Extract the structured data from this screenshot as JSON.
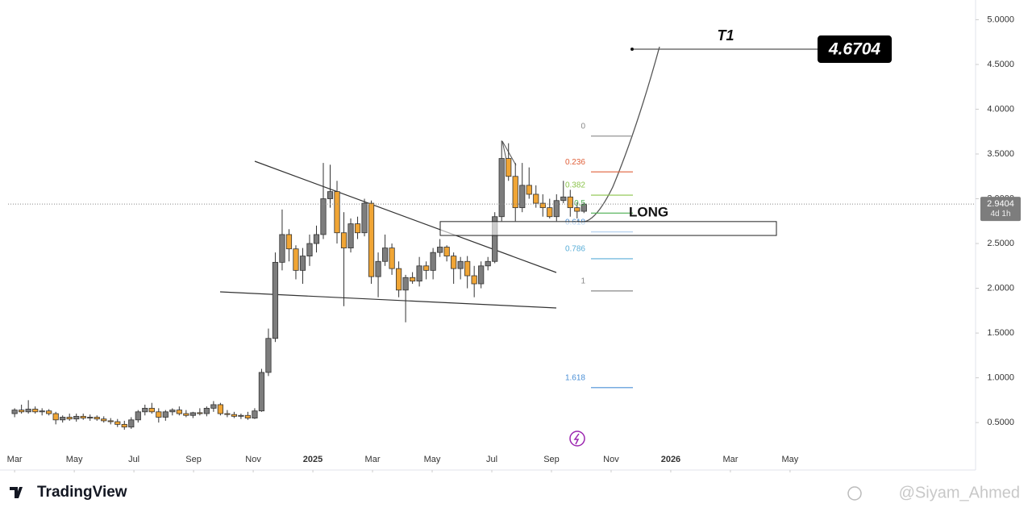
{
  "chart_data": {
    "type": "candlestick",
    "x": [
      0,
      0.23,
      0.46,
      0.69,
      0.92,
      1.15,
      1.38,
      1.61,
      1.84,
      2.07,
      2.3,
      2.53,
      2.76,
      2.99,
      3.22,
      3.45,
      3.68,
      3.91,
      4.14,
      4.37,
      4.6,
      4.83,
      5.06,
      5.29,
      5.52,
      5.75,
      5.98,
      6.21,
      6.44,
      6.67,
      6.9,
      7.13,
      7.36,
      7.59,
      7.82,
      8.05,
      8.28,
      8.51,
      8.74,
      8.97,
      9.2,
      9.43,
      9.66,
      9.89,
      10.12,
      10.35,
      10.58,
      10.81,
      11.04,
      11.27,
      11.5,
      11.73,
      11.96,
      12.19,
      12.42,
      12.65,
      12.88,
      13.11,
      13.34,
      13.57,
      13.8,
      14.03,
      14.26,
      14.49,
      14.72,
      14.95,
      15.18,
      15.41,
      15.64,
      15.87,
      16.1,
      16.33,
      16.56,
      16.79,
      17.02,
      17.25,
      17.48,
      17.71,
      17.94,
      18.17,
      18.4,
      18.63,
      18.86,
      19.09
    ],
    "open": [
      0.6,
      0.64,
      0.62,
      0.65,
      0.62,
      0.63,
      0.6,
      0.53,
      0.56,
      0.54,
      0.57,
      0.55,
      0.56,
      0.54,
      0.52,
      0.51,
      0.48,
      0.45,
      0.53,
      0.62,
      0.66,
      0.62,
      0.56,
      0.62,
      0.64,
      0.6,
      0.58,
      0.61,
      0.6,
      0.66,
      0.7,
      0.6,
      0.59,
      0.57,
      0.58,
      0.55,
      0.63,
      1.06,
      1.44,
      2.29,
      2.6,
      2.44,
      2.2,
      2.36,
      2.5,
      2.6,
      3.0,
      3.08,
      2.62,
      2.45,
      2.72,
      2.62,
      2.95,
      2.13,
      2.3,
      2.45,
      2.22,
      1.98,
      2.12,
      2.08,
      2.25,
      2.2,
      2.4,
      2.46,
      2.36,
      2.22,
      2.3,
      2.14,
      2.05,
      2.25,
      2.3,
      2.8,
      3.45,
      3.25,
      2.9,
      3.15,
      3.05,
      2.95,
      2.9,
      2.8,
      2.98,
      3.02,
      2.9,
      2.86
    ],
    "high": [
      0.66,
      0.7,
      0.75,
      0.68,
      0.66,
      0.65,
      0.62,
      0.58,
      0.6,
      0.6,
      0.6,
      0.59,
      0.58,
      0.57,
      0.55,
      0.54,
      0.52,
      0.56,
      0.64,
      0.7,
      0.72,
      0.66,
      0.64,
      0.66,
      0.68,
      0.64,
      0.62,
      0.66,
      0.68,
      0.74,
      0.72,
      0.64,
      0.62,
      0.6,
      0.62,
      0.66,
      1.1,
      1.55,
      2.4,
      2.88,
      2.66,
      2.48,
      2.45,
      2.6,
      2.7,
      3.4,
      3.38,
      3.2,
      2.85,
      2.78,
      2.8,
      3.0,
      2.98,
      2.4,
      2.6,
      2.5,
      2.3,
      2.15,
      2.18,
      2.35,
      2.3,
      2.45,
      2.55,
      2.48,
      2.4,
      2.35,
      2.36,
      2.25,
      2.3,
      2.35,
      2.85,
      3.65,
      3.62,
      3.4,
      3.4,
      3.35,
      3.15,
      3.05,
      3.0,
      3.05,
      3.2,
      3.1,
      2.96,
      2.96
    ],
    "low": [
      0.56,
      0.6,
      0.6,
      0.6,
      0.58,
      0.58,
      0.48,
      0.5,
      0.52,
      0.51,
      0.53,
      0.52,
      0.52,
      0.5,
      0.48,
      0.45,
      0.42,
      0.43,
      0.5,
      0.58,
      0.6,
      0.5,
      0.52,
      0.58,
      0.58,
      0.56,
      0.55,
      0.58,
      0.57,
      0.62,
      0.58,
      0.56,
      0.55,
      0.54,
      0.53,
      0.54,
      0.62,
      1.02,
      1.4,
      2.2,
      2.3,
      2.1,
      2.05,
      2.25,
      2.4,
      2.55,
      2.9,
      2.5,
      1.8,
      2.4,
      2.55,
      2.58,
      2.05,
      1.9,
      2.25,
      2.15,
      1.9,
      1.62,
      2.05,
      2.02,
      2.1,
      2.1,
      2.35,
      2.3,
      2.05,
      2.1,
      2.0,
      1.9,
      2.0,
      2.2,
      2.28,
      2.75,
      3.2,
      2.75,
      2.85,
      3.0,
      2.9,
      2.8,
      2.78,
      2.75,
      2.95,
      2.8,
      2.78,
      2.84
    ],
    "close": [
      0.64,
      0.62,
      0.65,
      0.62,
      0.63,
      0.6,
      0.53,
      0.56,
      0.54,
      0.57,
      0.55,
      0.56,
      0.54,
      0.52,
      0.51,
      0.48,
      0.45,
      0.53,
      0.62,
      0.66,
      0.62,
      0.56,
      0.62,
      0.64,
      0.6,
      0.58,
      0.61,
      0.6,
      0.66,
      0.7,
      0.6,
      0.59,
      0.57,
      0.58,
      0.55,
      0.63,
      1.06,
      1.44,
      2.29,
      2.6,
      2.44,
      2.2,
      2.36,
      2.5,
      2.6,
      3.0,
      3.08,
      2.62,
      2.45,
      2.72,
      2.62,
      2.95,
      2.13,
      2.3,
      2.45,
      2.22,
      1.98,
      2.12,
      2.08,
      2.25,
      2.2,
      2.4,
      2.46,
      2.36,
      2.22,
      2.3,
      2.14,
      2.05,
      2.25,
      2.3,
      2.8,
      3.45,
      3.25,
      2.9,
      3.15,
      3.05,
      2.95,
      2.9,
      2.8,
      2.98,
      3.02,
      2.9,
      2.86,
      2.94
    ],
    "up_color": "#7d7d7d",
    "down_color": "#f0a535",
    "xlim": [
      -0.22,
      32.22
    ],
    "xticks": [
      {
        "value": 0,
        "label": "Mar"
      },
      {
        "value": 2,
        "label": "May"
      },
      {
        "value": 4,
        "label": "Jul"
      },
      {
        "value": 6,
        "label": "Sep"
      },
      {
        "value": 8,
        "label": "Nov"
      },
      {
        "value": 10,
        "label": "2025"
      },
      {
        "value": 12,
        "label": "Mar"
      },
      {
        "value": 14,
        "label": "May"
      },
      {
        "value": 16,
        "label": "Jul"
      },
      {
        "value": 18,
        "label": "Sep"
      },
      {
        "value": 20,
        "label": "Nov"
      },
      {
        "value": 22,
        "label": "2026"
      },
      {
        "value": 24,
        "label": "Mar"
      },
      {
        "value": 26,
        "label": "May"
      }
    ],
    "ylim": [
      -0.03,
      5.22
    ],
    "yticks": [
      {
        "value": 0.5,
        "label": "0.5000"
      },
      {
        "value": 1,
        "label": "1.0000"
      },
      {
        "value": 1.5,
        "label": "1.5000"
      },
      {
        "value": 2,
        "label": "2.0000"
      },
      {
        "value": 2.5,
        "label": "2.5000"
      },
      {
        "value": 3,
        "label": "3.0000"
      },
      {
        "value": 3.5,
        "label": "3.5000"
      },
      {
        "value": 4,
        "label": "4.0000"
      },
      {
        "value": 4.5,
        "label": "4.5000"
      },
      {
        "value": 5,
        "label": "5.0000"
      }
    ],
    "fib_levels": [
      {
        "label": "0",
        "price": 3.7,
        "color": "#888888"
      },
      {
        "label": "0.236",
        "price": 3.3,
        "color": "#e0603a"
      },
      {
        "label": "0.382",
        "price": 3.04,
        "color": "#8bc34a"
      },
      {
        "label": "0.5",
        "price": 2.84,
        "color": "#4caf50"
      },
      {
        "label": "0.618",
        "price": 2.63,
        "color": "#4a8fd6"
      },
      {
        "label": "0.786",
        "price": 2.33,
        "color": "#5aaed8"
      },
      {
        "label": "1",
        "price": 1.97,
        "color": "#888888"
      },
      {
        "label": "1.618",
        "price": 0.89,
        "color": "#4a8fd6"
      }
    ],
    "long_zone": {
      "label": "LONG",
      "low": 2.59,
      "high": 2.745
    },
    "target": {
      "label": "T1",
      "value": 4.6704
    },
    "last_price": {
      "value": 2.9404,
      "countdown": "4d 1h"
    }
  },
  "footer": {
    "brand": "TradingView",
    "watermark": "@Siyam_Ahmed"
  }
}
